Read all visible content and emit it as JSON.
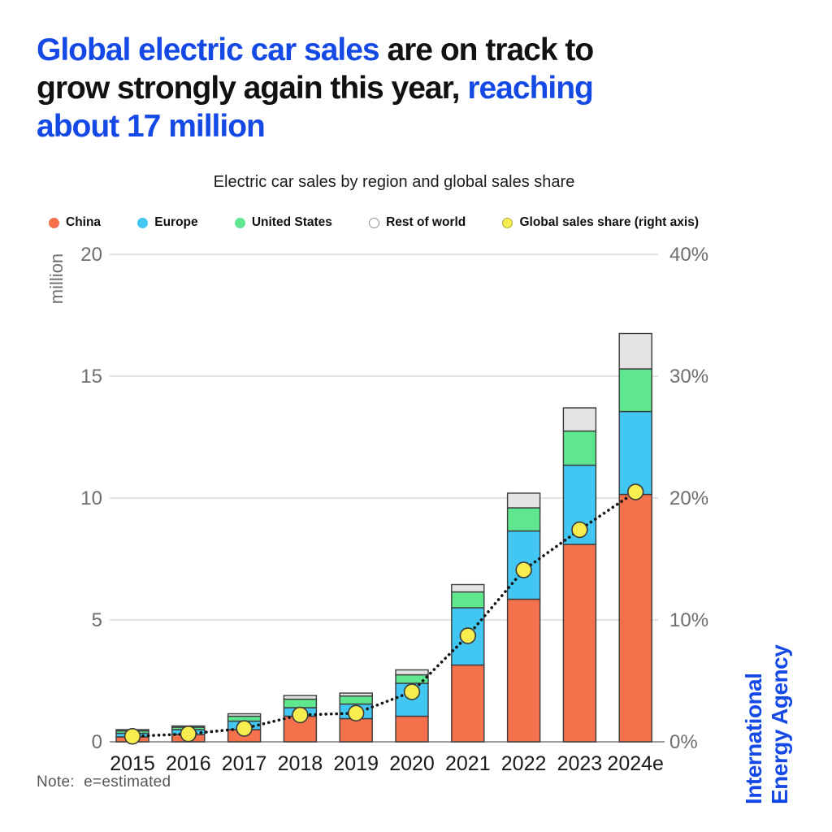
{
  "header": {
    "line1": {
      "blue": "Global electric car sales",
      "black": " are on track to"
    },
    "line2": {
      "black": "grow strongly again this year,",
      "blue": " reaching"
    },
    "line3": {
      "blue": "about 17 million"
    }
  },
  "note": {
    "text": "Note:  e=estimated"
  },
  "branding": {
    "line1": "International",
    "line2": "Energy Agency"
  },
  "colors": {
    "accent-blue": "#1449E6",
    "text-dark": "#111111",
    "bar-border": "#3B3B3B",
    "grid": "#D9D9D9",
    "axis": "#8F8F8F",
    "tick": "#6E6E6E",
    "year-label": "#1A1A1A",
    "line-dark": "#141414"
  },
  "chart_data": {
    "type": "bar",
    "title": "Electric car sales by region and global sales share",
    "categories": [
      "2015",
      "2016",
      "2017",
      "2018",
      "2019",
      "2020",
      "2021",
      "2022",
      "2023",
      "2024e"
    ],
    "series": [
      {
        "name": "China",
        "color": "#F4714B",
        "values": [
          0.2,
          0.3,
          0.5,
          1.05,
          0.95,
          1.05,
          3.15,
          5.85,
          8.1,
          10.15
        ]
      },
      {
        "name": "Europe",
        "color": "#41C7F2",
        "values": [
          0.15,
          0.2,
          0.35,
          0.35,
          0.6,
          1.35,
          2.35,
          2.8,
          3.25,
          3.4
        ]
      },
      {
        "name": "United States",
        "color": "#5FE78F",
        "values": [
          0.1,
          0.1,
          0.2,
          0.35,
          0.33,
          0.35,
          0.65,
          0.95,
          1.4,
          1.75
        ]
      },
      {
        "name": "Rest of world",
        "color": "#E4E4E4",
        "values": [
          0.05,
          0.05,
          0.1,
          0.15,
          0.12,
          0.2,
          0.3,
          0.6,
          0.95,
          1.45
        ]
      }
    ],
    "line_series": {
      "name": "Global sales share (right axis)",
      "color": "#F8ED4E",
      "values": [
        0.45,
        0.65,
        1.1,
        2.2,
        2.35,
        4.1,
        8.7,
        14.1,
        17.4,
        20.5
      ]
    },
    "left_axis": {
      "label": "million",
      "ticks": [
        "0",
        "5",
        "10",
        "15",
        "20"
      ],
      "max": 20
    },
    "right_axis": {
      "ticks": [
        "0%",
        "10%",
        "20%",
        "30%",
        "40%"
      ],
      "max": 40
    },
    "legend": [
      "China",
      "Europe",
      "United States",
      "Rest of world",
      "Global sales share (right axis)"
    ],
    "legend_markers": [
      {
        "fill": "#F4714B",
        "stroke": "none"
      },
      {
        "fill": "#41C7F2",
        "stroke": "none"
      },
      {
        "fill": "#5FE78F",
        "stroke": "none"
      },
      {
        "fill": "#FFFFFF",
        "stroke": "#8F8F8F"
      },
      {
        "fill": "#F8ED4E",
        "stroke": "#B3A93C"
      }
    ]
  }
}
